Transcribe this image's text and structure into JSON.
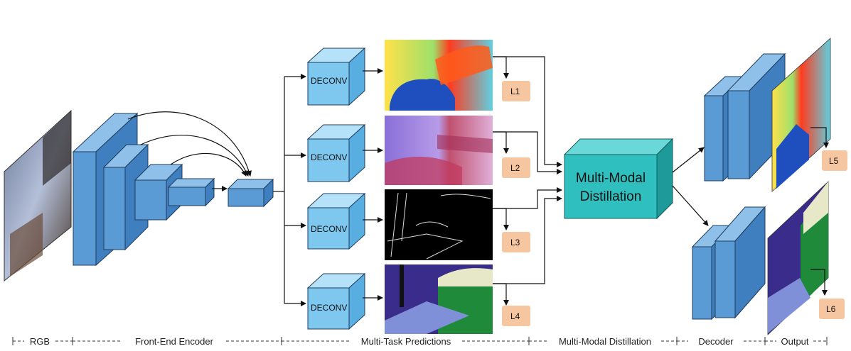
{
  "stages": {
    "rgb": "RGB",
    "encoder": "Front-End Encoder",
    "predictions": "Multi-Task Predictions",
    "distillation": "Multi-Modal Distillation",
    "decoder": "Decoder",
    "output": "Output"
  },
  "deconv_label": "DECONV",
  "distillation_module": {
    "line1": "Multi-Modal",
    "line2": "Distillation"
  },
  "losses": [
    "L1",
    "L2",
    "L3",
    "L4",
    "L5",
    "L6"
  ],
  "colors": {
    "block_blue": "#5b9bd5",
    "deconv_blue": "#7ec8f0",
    "distill_teal": "#2fbfbf",
    "loss_peach": "#f5c6a0"
  }
}
